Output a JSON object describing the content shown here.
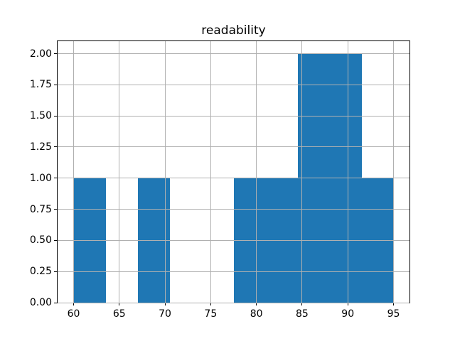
{
  "chart_data": {
    "type": "bar",
    "subtype": "histogram",
    "title": "readability",
    "xlabel": "",
    "ylabel": "",
    "bin_edges": [
      60,
      63.5,
      67,
      70.5,
      74,
      77.5,
      81,
      84.5,
      88,
      91.5,
      95
    ],
    "counts": [
      1,
      0,
      1,
      0,
      0,
      1,
      1,
      2,
      2,
      1
    ],
    "xlim": [
      58.25,
      96.75
    ],
    "ylim": [
      0,
      2.1
    ],
    "xticks": [
      60,
      65,
      70,
      75,
      80,
      85,
      90,
      95
    ],
    "xtick_labels": [
      "60",
      "65",
      "70",
      "75",
      "80",
      "85",
      "90",
      "95"
    ],
    "yticks": [
      0,
      0.25,
      0.5,
      0.75,
      1.0,
      1.25,
      1.5,
      1.75,
      2.0
    ],
    "ytick_labels": [
      "0.00",
      "0.25",
      "0.50",
      "0.75",
      "1.00",
      "1.25",
      "1.50",
      "1.75",
      "2.00"
    ],
    "grid": true,
    "grid_above_bars": true,
    "legend": false,
    "colors": {
      "bar": "#1f77b4",
      "grid": "#b0b0b0",
      "spine": "#000000",
      "background": "#ffffff",
      "text": "#000000"
    }
  }
}
